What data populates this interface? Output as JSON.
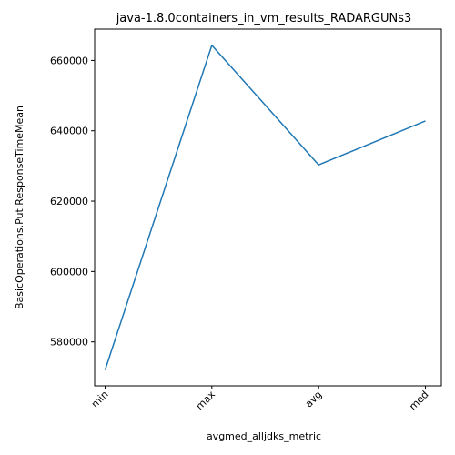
{
  "chart_data": {
    "type": "line",
    "title": "java-1.8.0containers_in_vm_results_RADARGUNs3",
    "xlabel": "avgmed_alljdks_metric",
    "ylabel": "BasicOperations.Put.ResponseTimeMean",
    "categories": [
      "min",
      "max",
      "avg",
      "med"
    ],
    "series": [
      {
        "values": [
          572000,
          664300,
          630300,
          642800
        ]
      }
    ],
    "ylim": [
      567500,
      668900
    ],
    "yticks": [
      580000,
      600000,
      620000,
      640000,
      660000
    ],
    "ytick_labels": [
      "580000",
      "600000",
      "620000",
      "640000",
      "660000"
    ],
    "grid": false,
    "line_color": "#1f77b4"
  }
}
